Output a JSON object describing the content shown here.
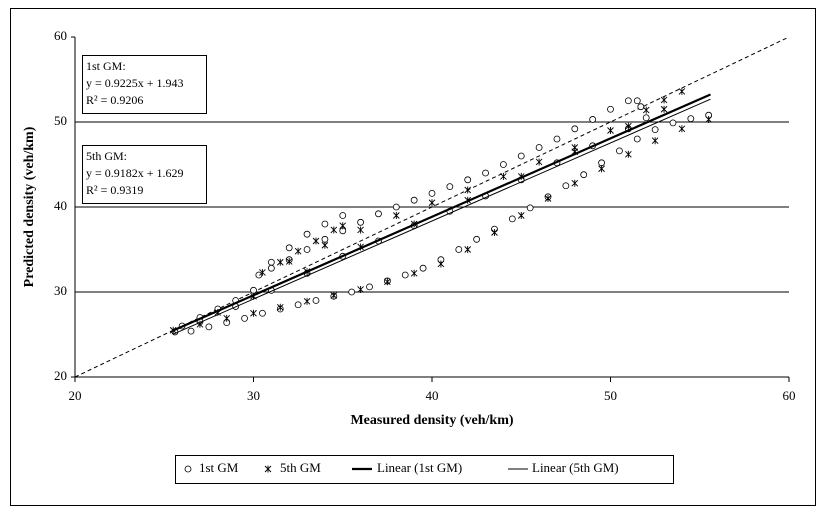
{
  "chart_data": {
    "type": "scatter",
    "x_label": "Measured density (veh/km)",
    "y_label": "Predicted density (veh/km)",
    "xlim": [
      20,
      60
    ],
    "xticks": [
      20,
      30,
      40,
      50,
      60
    ],
    "ylim": [
      20,
      60
    ],
    "yticks": [
      20,
      30,
      40,
      50,
      60
    ],
    "grid": true,
    "legend": "bottom",
    "annotations": [
      {
        "lines": [
          "1st GM:",
          "y = 0.9225x + 1.943",
          "R² = 0.9206"
        ]
      },
      {
        "lines": [
          "5th GM:",
          "y = 0.9182x + 1.629",
          "R² = 0.9319"
        ]
      }
    ],
    "series": [
      {
        "name": "1st GM",
        "type": "scatter",
        "marker": "circle",
        "color": "#000000",
        "x": [
          25.6,
          26.5,
          27.5,
          28.5,
          29.5,
          30.5,
          31.5,
          32.5,
          33.5,
          34.5,
          35.5,
          36.5,
          37.5,
          38.5,
          39.5,
          40.5,
          41.5,
          42.5,
          43.5,
          44.5,
          45.5,
          46.5,
          47.5,
          48.5,
          49.5,
          50.5,
          51.5,
          52.5,
          53.5,
          54.5,
          55.5,
          26,
          27,
          28,
          29,
          30,
          30.3,
          31,
          32,
          33,
          34,
          35,
          31,
          32,
          33,
          34,
          35,
          36,
          37,
          38,
          39,
          40,
          41,
          42,
          43,
          44,
          45,
          46,
          47,
          48,
          49,
          50,
          51,
          51.5,
          51.7,
          27,
          29,
          31,
          33,
          35,
          37,
          39,
          41,
          43,
          45,
          47,
          49,
          51,
          52
        ],
        "values": [
          25.3,
          25.4,
          25.9,
          26.4,
          26.9,
          27.5,
          28,
          28.5,
          29,
          29.5,
          30,
          30.6,
          31.3,
          32,
          32.8,
          33.8,
          35,
          36.2,
          37.4,
          38.6,
          39.9,
          41.2,
          42.5,
          43.8,
          45.2,
          46.6,
          48,
          49.1,
          49.9,
          50.4,
          50.8,
          26,
          27,
          28,
          29,
          30.2,
          32,
          33.5,
          35.2,
          36.8,
          38,
          39,
          32.8,
          33.8,
          35,
          36.2,
          37.2,
          38.2,
          39.2,
          40,
          40.8,
          41.6,
          42.4,
          43.2,
          44,
          45,
          46,
          47,
          48,
          49.2,
          50.3,
          51.5,
          52.5,
          52.5,
          51.8,
          26.5,
          28.3,
          30.2,
          32.2,
          34.2,
          36,
          37.8,
          39.5,
          41.3,
          43.2,
          45.2,
          47.2,
          49.2,
          50.5
        ]
      },
      {
        "name": "5th GM",
        "type": "scatter",
        "marker": "asterisk",
        "color": "#000000",
        "x": [
          25.5,
          27,
          28.5,
          30,
          31.5,
          33,
          34.5,
          36,
          37.5,
          39,
          40.5,
          42,
          43.5,
          45,
          46.5,
          48,
          49.5,
          51,
          52.5,
          54,
          55.5,
          30.5,
          31.5,
          32.5,
          33.5,
          34.5,
          35,
          32,
          34,
          36,
          38,
          40,
          42,
          44,
          46,
          48,
          50,
          52,
          53,
          54,
          28,
          30,
          33,
          36,
          39,
          42,
          45,
          48,
          51,
          53
        ],
        "values": [
          25.5,
          26.2,
          26.9,
          27.5,
          28.2,
          28.9,
          29.6,
          30.3,
          31.2,
          32.2,
          33.3,
          35,
          37,
          39,
          41,
          42.8,
          44.5,
          46.2,
          47.8,
          49.2,
          50.3,
          32.3,
          33.5,
          34.8,
          36,
          37.3,
          37.8,
          33.6,
          35.5,
          37.3,
          39,
          40.5,
          42,
          43.6,
          45.3,
          47,
          49,
          51.4,
          52.6,
          53.6,
          27.6,
          29.5,
          32.4,
          35.3,
          38,
          40.8,
          43.6,
          46.5,
          49.5,
          51.5
        ]
      },
      {
        "name": "Linear (1st GM)",
        "type": "line",
        "color": "#000000",
        "width": 2.2,
        "x": [
          25.5,
          55.6
        ],
        "values": [
          25.47,
          53.24
        ]
      },
      {
        "name": "Linear (5th GM)",
        "type": "line",
        "color": "#000000",
        "width": 1,
        "x": [
          25.5,
          55.6
        ],
        "values": [
          25.04,
          52.68
        ]
      }
    ]
  }
}
